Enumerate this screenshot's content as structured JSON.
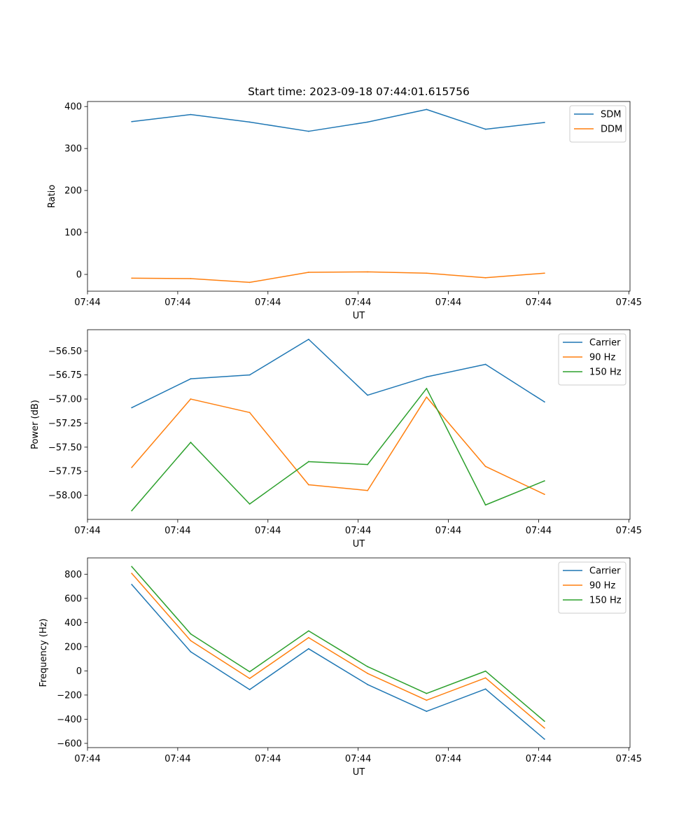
{
  "figure": {
    "title": "Start time: 2023-09-18 07:44:01.615756"
  },
  "chart_data": [
    {
      "type": "line",
      "title": "Start time: 2023-09-18 07:44:01.615756",
      "xlabel": "UT",
      "ylabel": "Ratio",
      "x": [
        0,
        1,
        2,
        3,
        4,
        5,
        6,
        7
      ],
      "xlim": [
        -0.75,
        8.45
      ],
      "xticks": [
        -0.75,
        0.78,
        2.31,
        3.84,
        5.37,
        6.9,
        8.43
      ],
      "xtick_labels": [
        "07:44",
        "07:44",
        "07:44",
        "07:44",
        "07:44",
        "07:44",
        "07:45"
      ],
      "ylim": [
        -40,
        412
      ],
      "yticks": [
        0,
        100,
        200,
        300,
        400
      ],
      "ytick_labels": [
        "0",
        "100",
        "200",
        "300",
        "400"
      ],
      "legend_position": "top-right",
      "series": [
        {
          "name": "SDM",
          "color": "#1f77b4",
          "values": [
            364,
            381,
            363,
            341,
            363,
            393,
            346,
            362
          ]
        },
        {
          "name": "DDM",
          "color": "#ff7f0e",
          "values": [
            -9,
            -10,
            -19,
            5,
            6,
            3,
            -8,
            3
          ]
        }
      ]
    },
    {
      "type": "line",
      "title": "",
      "xlabel": "UT",
      "ylabel": "Power (dB)",
      "x": [
        0,
        1,
        2,
        3,
        4,
        5,
        6,
        7
      ],
      "xlim": [
        -0.75,
        8.45
      ],
      "xticks": [
        -0.75,
        0.78,
        2.31,
        3.84,
        5.37,
        6.9,
        8.43
      ],
      "xtick_labels": [
        "07:44",
        "07:44",
        "07:44",
        "07:44",
        "07:44",
        "07:44",
        "07:45"
      ],
      "ylim": [
        -58.25,
        -56.28
      ],
      "yticks": [
        -58.0,
        -57.75,
        -57.5,
        -57.25,
        -57.0,
        -56.75,
        -56.5
      ],
      "ytick_labels": [
        "−58.00",
        "−57.75",
        "−57.50",
        "−57.25",
        "−57.00",
        "−56.75",
        "−56.50"
      ],
      "legend_position": "top-right",
      "series": [
        {
          "name": "Carrier",
          "color": "#1f77b4",
          "values": [
            -57.09,
            -56.79,
            -56.75,
            -56.38,
            -56.96,
            -56.77,
            -56.64,
            -57.03
          ]
        },
        {
          "name": "90 Hz",
          "color": "#ff7f0e",
          "values": [
            -57.71,
            -57.0,
            -57.14,
            -57.89,
            -57.95,
            -56.98,
            -57.7,
            -57.99
          ]
        },
        {
          "name": "150 Hz",
          "color": "#2ca02c",
          "values": [
            -58.16,
            -57.45,
            -58.09,
            -57.65,
            -57.68,
            -56.89,
            -58.1,
            -57.85
          ]
        }
      ]
    },
    {
      "type": "line",
      "title": "",
      "xlabel": "UT",
      "ylabel": "Frequency (Hz)",
      "x": [
        0,
        1,
        2,
        3,
        4,
        5,
        6,
        7
      ],
      "xlim": [
        -0.75,
        8.45
      ],
      "xticks": [
        -0.75,
        0.78,
        2.31,
        3.84,
        5.37,
        6.9,
        8.43
      ],
      "xtick_labels": [
        "07:44",
        "07:44",
        "07:44",
        "07:44",
        "07:44",
        "07:44",
        "07:45"
      ],
      "ylim": [
        -635,
        935
      ],
      "yticks": [
        -600,
        -400,
        -200,
        0,
        200,
        400,
        600,
        800
      ],
      "ytick_labels": [
        "−600",
        "−400",
        "−200",
        "0",
        "200",
        "400",
        "600",
        "800"
      ],
      "legend_position": "top-right",
      "series": [
        {
          "name": "Carrier",
          "color": "#1f77b4",
          "values": [
            715,
            158,
            -155,
            183,
            -113,
            -335,
            -150,
            -565
          ]
        },
        {
          "name": "90 Hz",
          "color": "#ff7f0e",
          "values": [
            807,
            250,
            -63,
            275,
            -21,
            -243,
            -58,
            -473
          ]
        },
        {
          "name": "150 Hz",
          "color": "#2ca02c",
          "values": [
            863,
            306,
            -7,
            331,
            35,
            -187,
            -2,
            -417
          ]
        }
      ]
    }
  ]
}
